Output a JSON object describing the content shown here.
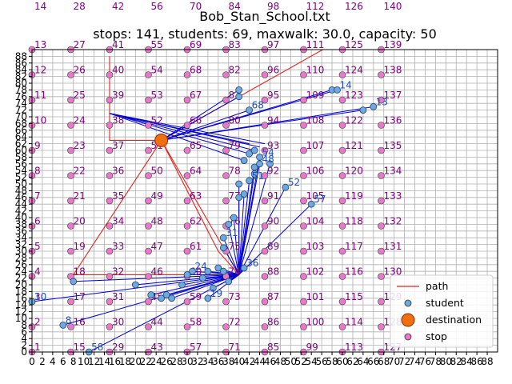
{
  "chart_data": {
    "type": "scatter",
    "title": "Bob_Stan_School.txt",
    "subtitle": "stops: 141, students: 69, maxwalk: 30.0, capacity: 50",
    "xlim": [
      0,
      90
    ],
    "ylim": [
      0,
      90
    ],
    "x_ticks": [
      0,
      2,
      4,
      6,
      8,
      10,
      12,
      14,
      16,
      18,
      20,
      22,
      24,
      26,
      28,
      30,
      32,
      34,
      36,
      38,
      40,
      42,
      44,
      46,
      48,
      50,
      52,
      54,
      56,
      58,
      60,
      62,
      64,
      66,
      68,
      70,
      72,
      74,
      76,
      78,
      80,
      82,
      84,
      86,
      88
    ],
    "y_ticks": [
      0,
      2,
      4,
      6,
      8,
      10,
      12,
      14,
      16,
      18,
      20,
      22,
      24,
      26,
      28,
      30,
      32,
      34,
      36,
      38,
      40,
      42,
      44,
      46,
      48,
      50,
      52,
      54,
      56,
      58,
      60,
      62,
      64,
      66,
      68,
      70,
      72,
      74,
      76,
      78,
      80,
      82,
      84,
      86,
      88
    ],
    "grid": true,
    "legend": {
      "placement": "lower-right",
      "entries": [
        {
          "label": "path",
          "kind": "line",
          "color": "#e6221c"
        },
        {
          "label": "student",
          "kind": "marker",
          "color": "#6fa8dc"
        },
        {
          "label": "destination",
          "kind": "big-marker",
          "color": "#f26f10"
        },
        {
          "label": "stop",
          "kind": "marker",
          "color": "#e879c9"
        }
      ]
    },
    "colors": {
      "path": "#e6221c",
      "assignment": "#0000d0",
      "student": "#6fa8dc",
      "stop": "#e879c9",
      "destination": "#f26f10",
      "stop_label": "#800080",
      "student_label": "#1f4fbf"
    },
    "destination": {
      "x": 25,
      "y": 63
    },
    "stop_grid": {
      "columns": [
        0,
        7.5,
        15,
        22.5,
        30,
        37.5,
        45,
        52.5,
        60,
        67.5
      ],
      "rows": [
        0,
        7.5,
        15,
        22.5,
        30,
        37.5,
        45,
        52.5,
        60,
        67.5,
        75,
        82.5,
        90,
        97.5,
        105
      ],
      "label_start": 1,
      "rows_per_column": 14
    },
    "stops_visible_labels": [
      "1",
      "2",
      "3",
      "4",
      "5",
      "6",
      "7",
      "8",
      "9",
      "10",
      "11",
      "12",
      "13",
      "14",
      "15",
      "16",
      "17",
      "18",
      "19",
      "20",
      "21",
      "22",
      "23",
      "24",
      "25",
      "26",
      "27",
      "28",
      "29",
      "30",
      "31",
      "32",
      "33",
      "34",
      "35",
      "36",
      "37",
      "38",
      "39",
      "40",
      "41",
      "42",
      "43",
      "44",
      "45",
      "46",
      "47",
      "48",
      "49",
      "50",
      "51",
      "52",
      "53",
      "54",
      "55",
      "56",
      "57",
      "58",
      "59",
      "60",
      "61",
      "62",
      "63",
      "64",
      "65",
      "66",
      "67",
      "68",
      "69",
      "70",
      "71",
      "72",
      "73",
      "74",
      "75",
      "76",
      "77",
      "78",
      "79",
      "80",
      "81",
      "82",
      "83",
      "84",
      "85",
      "86",
      "87",
      "88",
      "89",
      "90",
      "91",
      "92",
      "93",
      "94",
      "95",
      "96",
      "97",
      "98",
      "99",
      "100",
      "101",
      "102",
      "103",
      "104",
      "105",
      "106",
      "107",
      "108",
      "109",
      "110",
      "111",
      "112",
      "113",
      "114",
      "115",
      "116",
      "117",
      "118",
      "119",
      "120",
      "121",
      "122",
      "123",
      "124",
      "125",
      "126",
      "127",
      "128",
      "129",
      "130",
      "131",
      "132",
      "133",
      "134",
      "135",
      "136",
      "137",
      "138",
      "139",
      "140"
    ],
    "path_segments": [
      [
        [
          25,
          63
        ],
        [
          8,
          23
        ],
        [
          40,
          23
        ],
        [
          25,
          63
        ],
        [
          15,
          63
        ],
        [
          15,
          71
        ],
        [
          15,
          88
        ]
      ],
      [
        [
          25,
          63
        ],
        [
          36,
          30
        ],
        [
          40,
          23
        ]
      ],
      [
        [
          25,
          63
        ],
        [
          62,
          95
        ]
      ]
    ],
    "assignment_segments": [
      {
        "stop": [
          40,
          23
        ],
        "to": [
          [
            8,
            21
          ],
          [
            20,
            20
          ],
          [
            29,
            20
          ],
          [
            23,
            17
          ],
          [
            25,
            16
          ],
          [
            27,
            16
          ],
          [
            34,
            16
          ],
          [
            35,
            19
          ],
          [
            33,
            22
          ],
          [
            31,
            24
          ],
          [
            36,
            25
          ],
          [
            37,
            24
          ],
          [
            38,
            21
          ],
          [
            41,
            25
          ],
          [
            37,
            31
          ],
          [
            37,
            34
          ],
          [
            38,
            38
          ],
          [
            39,
            40
          ],
          [
            40,
            46
          ],
          [
            41,
            47
          ],
          [
            40,
            50
          ],
          [
            42,
            51
          ],
          [
            43,
            53
          ],
          [
            43,
            55
          ],
          [
            44,
            56
          ],
          [
            46,
            56
          ],
          [
            44,
            58
          ],
          [
            54,
            44
          ],
          [
            49,
            49
          ],
          [
            6,
            8
          ],
          [
            0,
            15
          ],
          [
            11,
            0
          ],
          [
            26,
            17
          ],
          [
            30,
            23
          ],
          [
            34,
            24
          ]
        ]
      },
      {
        "stop": [
          15,
          71
        ],
        "to": [
          [
            41,
            57
          ],
          [
            42,
            59
          ],
          [
            43,
            60
          ],
          [
            44,
            61
          ],
          [
            45,
            62
          ],
          [
            42,
            62
          ]
        ]
      },
      {
        "stop": [
          25,
          63
        ],
        "to": [
          [
            40,
            76
          ],
          [
            40,
            78
          ],
          [
            42,
            72
          ],
          [
            58,
            78
          ],
          [
            59,
            78
          ],
          [
            64,
            72
          ],
          [
            66,
            73
          ]
        ]
      }
    ],
    "students": [
      {
        "x": 8,
        "y": 21
      },
      {
        "x": 20,
        "y": 20
      },
      {
        "x": 23,
        "y": 17
      },
      {
        "x": 25,
        "y": 16
      },
      {
        "x": 27,
        "y": 16
      },
      {
        "x": 29,
        "y": 20
      },
      {
        "x": 31,
        "y": 24
      },
      {
        "x": 33,
        "y": 22
      },
      {
        "x": 34,
        "y": 16
      },
      {
        "x": 35,
        "y": 19
      },
      {
        "x": 36,
        "y": 25
      },
      {
        "x": 37,
        "y": 24
      },
      {
        "x": 38,
        "y": 21
      },
      {
        "x": 41,
        "y": 25
      },
      {
        "x": 37,
        "y": 31
      },
      {
        "x": 37,
        "y": 34
      },
      {
        "x": 38,
        "y": 38
      },
      {
        "x": 39,
        "y": 40
      },
      {
        "x": 40,
        "y": 46
      },
      {
        "x": 41,
        "y": 47
      },
      {
        "x": 40,
        "y": 50
      },
      {
        "x": 42,
        "y": 51
      },
      {
        "x": 43,
        "y": 53
      },
      {
        "x": 43,
        "y": 55
      },
      {
        "x": 44,
        "y": 56
      },
      {
        "x": 46,
        "y": 56
      },
      {
        "x": 44,
        "y": 58
      },
      {
        "x": 54,
        "y": 44
      },
      {
        "x": 49,
        "y": 49
      },
      {
        "x": 6,
        "y": 8
      },
      {
        "x": 0,
        "y": 15
      },
      {
        "x": 11,
        "y": 0
      },
      {
        "x": 26,
        "y": 17
      },
      {
        "x": 30,
        "y": 23
      },
      {
        "x": 34,
        "y": 24
      },
      {
        "x": 41,
        "y": 57
      },
      {
        "x": 42,
        "y": 59
      },
      {
        "x": 43,
        "y": 60
      },
      {
        "x": 40,
        "y": 76
      },
      {
        "x": 40,
        "y": 78
      },
      {
        "x": 42,
        "y": 72
      },
      {
        "x": 58,
        "y": 78
      },
      {
        "x": 59,
        "y": 78
      },
      {
        "x": 64,
        "y": 72
      },
      {
        "x": 66,
        "y": 73
      }
    ],
    "student_labels": [
      {
        "text": "8",
        "x": 6,
        "y": 8
      },
      {
        "text": "10",
        "x": 0,
        "y": 15
      },
      {
        "text": "58",
        "x": 11,
        "y": 0
      },
      {
        "text": "52",
        "x": 49,
        "y": 49
      },
      {
        "text": "57",
        "x": 54,
        "y": 44
      },
      {
        "text": "54",
        "x": 44,
        "y": 58
      },
      {
        "text": "48",
        "x": 44,
        "y": 56
      },
      {
        "text": "51",
        "x": 42,
        "y": 51
      },
      {
        "text": "31",
        "x": 37,
        "y": 34
      },
      {
        "text": "36",
        "x": 41,
        "y": 25
      },
      {
        "text": "68",
        "x": 42,
        "y": 72
      },
      {
        "text": "14",
        "x": 59,
        "y": 78
      },
      {
        "text": "13",
        "x": 66,
        "y": 73
      },
      {
        "text": "24",
        "x": 31,
        "y": 24
      },
      {
        "text": "19",
        "x": 34,
        "y": 16
      }
    ]
  }
}
